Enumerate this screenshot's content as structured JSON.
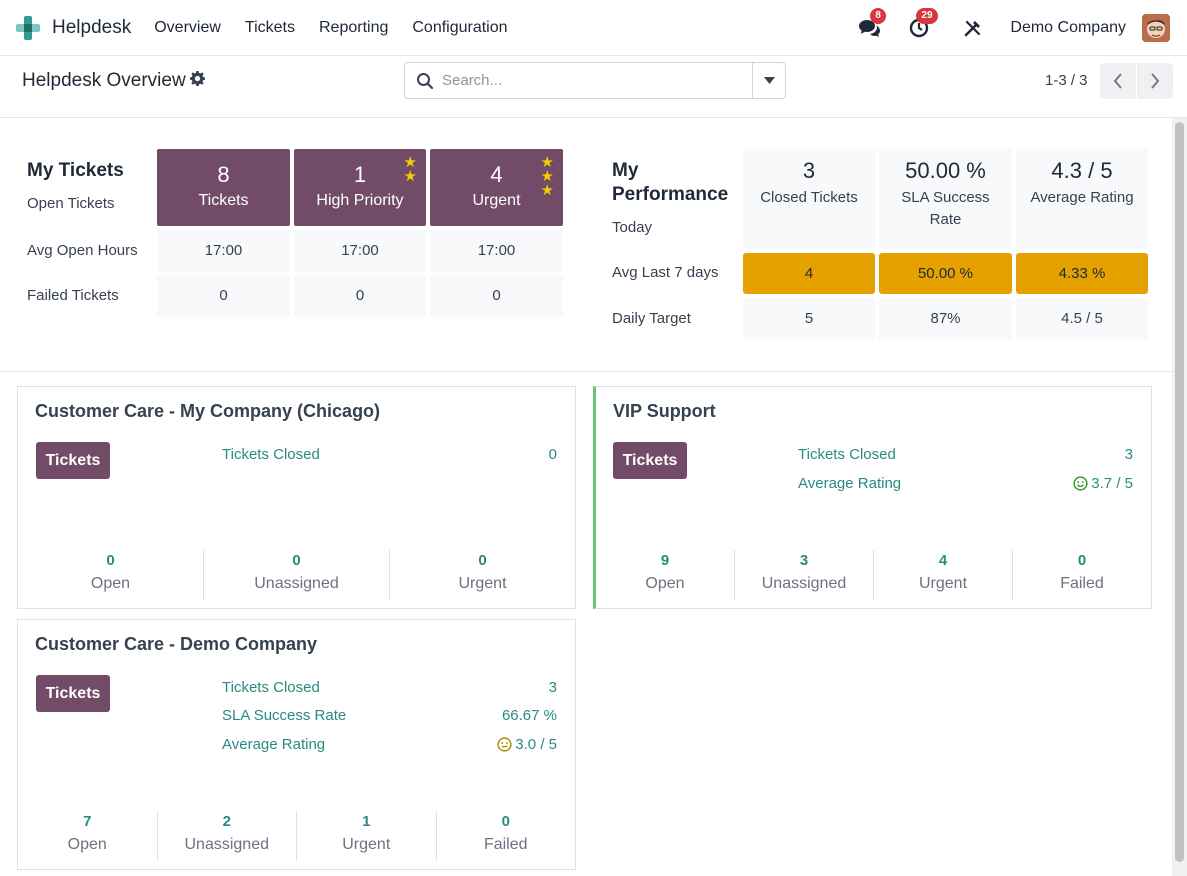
{
  "navbar": {
    "app_name": "Helpdesk",
    "menu": [
      "Overview",
      "Tickets",
      "Reporting",
      "Configuration"
    ],
    "messages_badge": "8",
    "activities_badge": "29",
    "company": "Demo Company"
  },
  "control": {
    "title": "Helpdesk Overview",
    "search_placeholder": "Search...",
    "pager": "1-3 / 3"
  },
  "my_tickets": {
    "heading": "My Tickets",
    "row_labels": [
      "Open Tickets",
      "Avg Open Hours",
      "Failed Tickets"
    ],
    "columns": [
      {
        "value": "8",
        "label": "Tickets",
        "stars": 0,
        "avg_hours": "17:00",
        "failed": "0"
      },
      {
        "value": "1",
        "label": "High Priority",
        "stars": 2,
        "avg_hours": "17:00",
        "failed": "0"
      },
      {
        "value": "4",
        "label": "Urgent",
        "stars": 3,
        "avg_hours": "17:00",
        "failed": "0"
      }
    ]
  },
  "my_performance": {
    "heading_line1": "My",
    "heading_line2": "Performance",
    "row_labels": [
      "Today",
      "Avg Last 7 days",
      "Daily Target"
    ],
    "columns": [
      {
        "today": "3",
        "label": "Closed Tickets",
        "avg7": "4",
        "target": "5"
      },
      {
        "today": "50.00 %",
        "label": "SLA Success Rate",
        "avg7": "50.00 %",
        "target": "87%"
      },
      {
        "today": "4.3 / 5",
        "label": "Average Rating",
        "avg7": "4.33 %",
        "target": "4.5 / 5"
      }
    ],
    "highlight_color": "#e5a100"
  },
  "teams": [
    {
      "name": "Customer Care - My Company (Chicago)",
      "button": "Tickets",
      "stats": [
        {
          "label": "Tickets Closed",
          "value": "0"
        }
      ],
      "footer": [
        {
          "value": "0",
          "label": "Open"
        },
        {
          "value": "0",
          "label": "Unassigned"
        },
        {
          "value": "0",
          "label": "Urgent"
        }
      ]
    },
    {
      "name": "VIP Support",
      "button": "Tickets",
      "stats": [
        {
          "label": "Tickets Closed",
          "value": "3"
        },
        {
          "label": "Average Rating",
          "value": "3.7 / 5",
          "icon": "smile-icon"
        }
      ],
      "footer": [
        {
          "value": "9",
          "label": "Open"
        },
        {
          "value": "3",
          "label": "Unassigned"
        },
        {
          "value": "4",
          "label": "Urgent"
        },
        {
          "value": "0",
          "label": "Failed"
        }
      ]
    },
    {
      "name": "Customer Care - Demo Company",
      "button": "Tickets",
      "stats": [
        {
          "label": "Tickets Closed",
          "value": "3"
        },
        {
          "label": "SLA Success Rate",
          "value": "66.67 %"
        },
        {
          "label": "Average Rating",
          "value": "3.0 / 5",
          "icon": "neutral-face-icon"
        }
      ],
      "footer": [
        {
          "value": "7",
          "label": "Open"
        },
        {
          "value": "2",
          "label": "Unassigned"
        },
        {
          "value": "1",
          "label": "Urgent"
        },
        {
          "value": "0",
          "label": "Failed"
        }
      ]
    }
  ],
  "colors": {
    "brand": "#714b67",
    "link": "#2a8a82",
    "active_border": "#6cc575",
    "badge": "#d9363e"
  }
}
